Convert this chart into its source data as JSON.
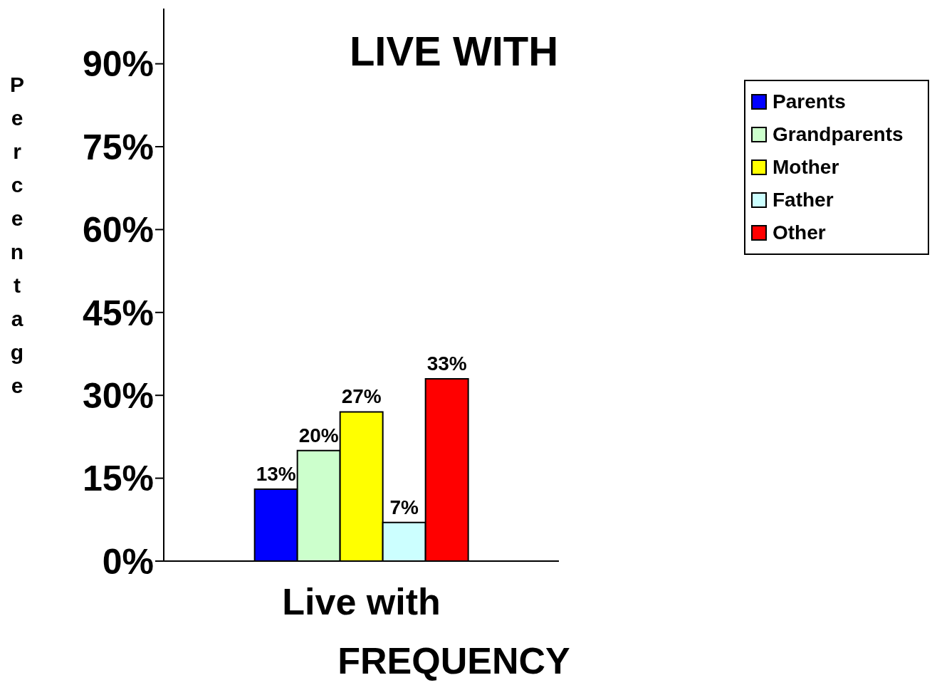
{
  "chart_data": {
    "type": "bar",
    "title": "LIVE WITH",
    "xlabel": "FREQUENCY",
    "ylabel": "Percentage",
    "categories": [
      "Live with"
    ],
    "series": [
      {
        "name": "Parents",
        "color": "#0000ff",
        "values": [
          13
        ],
        "value_labels": [
          "13%"
        ]
      },
      {
        "name": "Grandparents",
        "color": "#ccffcc",
        "values": [
          20
        ],
        "value_labels": [
          "20%"
        ]
      },
      {
        "name": "Mother",
        "color": "#ffff00",
        "values": [
          27
        ],
        "value_labels": [
          "27%"
        ]
      },
      {
        "name": "Father",
        "color": "#ccffff",
        "values": [
          7
        ],
        "value_labels": [
          "7%"
        ]
      },
      {
        "name": "Other",
        "color": "#ff0000",
        "values": [
          33
        ],
        "value_labels": [
          "33%"
        ]
      }
    ],
    "ylim": [
      0,
      100
    ],
    "yticks": [
      {
        "value": 0,
        "label": "0%"
      },
      {
        "value": 15,
        "label": "15%"
      },
      {
        "value": 30,
        "label": "30%"
      },
      {
        "value": 45,
        "label": "45%"
      },
      {
        "value": 60,
        "label": "60%"
      },
      {
        "value": 75,
        "label": "75%"
      },
      {
        "value": 90,
        "label": "90%"
      }
    ],
    "grid": false,
    "legend": "top right"
  }
}
